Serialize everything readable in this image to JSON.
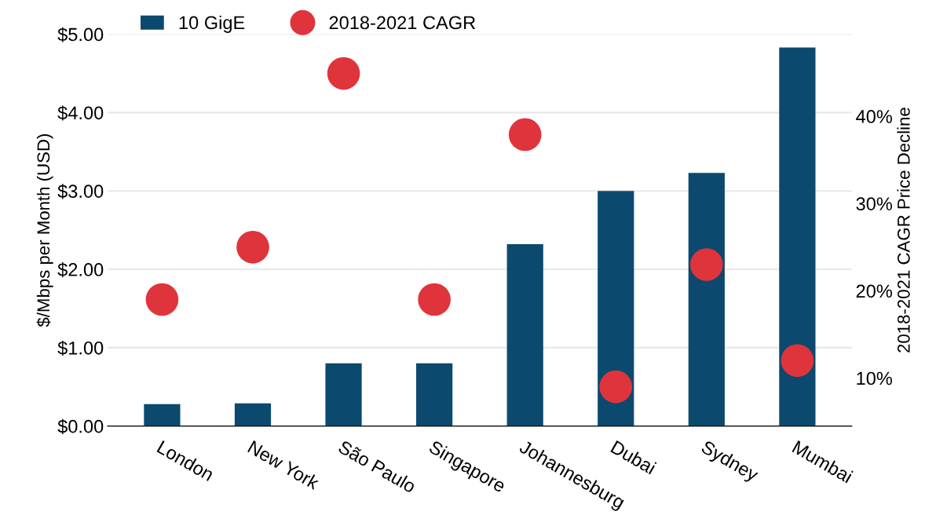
{
  "chart_data": {
    "type": "bar",
    "categories": [
      "London",
      "New York",
      "São Paulo",
      "Singapore",
      "Johannesburg",
      "Dubai",
      "Sydney",
      "Mumbai"
    ],
    "ylabel": "$/Mbps per Month (USD)",
    "y2label": "2018-2021 CAGR Price Decline",
    "series": [
      {
        "name": "10 GigE",
        "color": "#0b4a6e",
        "values": [
          0.28,
          0.29,
          0.8,
          0.8,
          2.32,
          3.0,
          3.23,
          4.83
        ]
      },
      {
        "name": "2018-2021 CAGR",
        "type": "scatter",
        "axis": "y2",
        "color": "#e0343c",
        "values": [
          19,
          25,
          44.9,
          19,
          37.9,
          9,
          23,
          12
        ]
      }
    ],
    "ylim": [
      0,
      5
    ],
    "yticks": [
      {
        "value": 0,
        "label": "$0.00"
      },
      {
        "value": 1,
        "label": "$1.00"
      },
      {
        "value": 2,
        "label": "$2.00"
      },
      {
        "value": 3,
        "label": "$3.00"
      },
      {
        "value": 4,
        "label": "$4.00"
      },
      {
        "value": 5,
        "label": "$5.00"
      }
    ],
    "y2lim": [
      4.5,
      49.4
    ],
    "y2ticks": [
      {
        "value": 10,
        "label": "10%"
      },
      {
        "value": 20,
        "label": "20%"
      },
      {
        "value": 30,
        "label": "30%"
      },
      {
        "value": 40,
        "label": "40%"
      }
    ],
    "grid": "y",
    "legend": "top",
    "marker": "circle"
  }
}
